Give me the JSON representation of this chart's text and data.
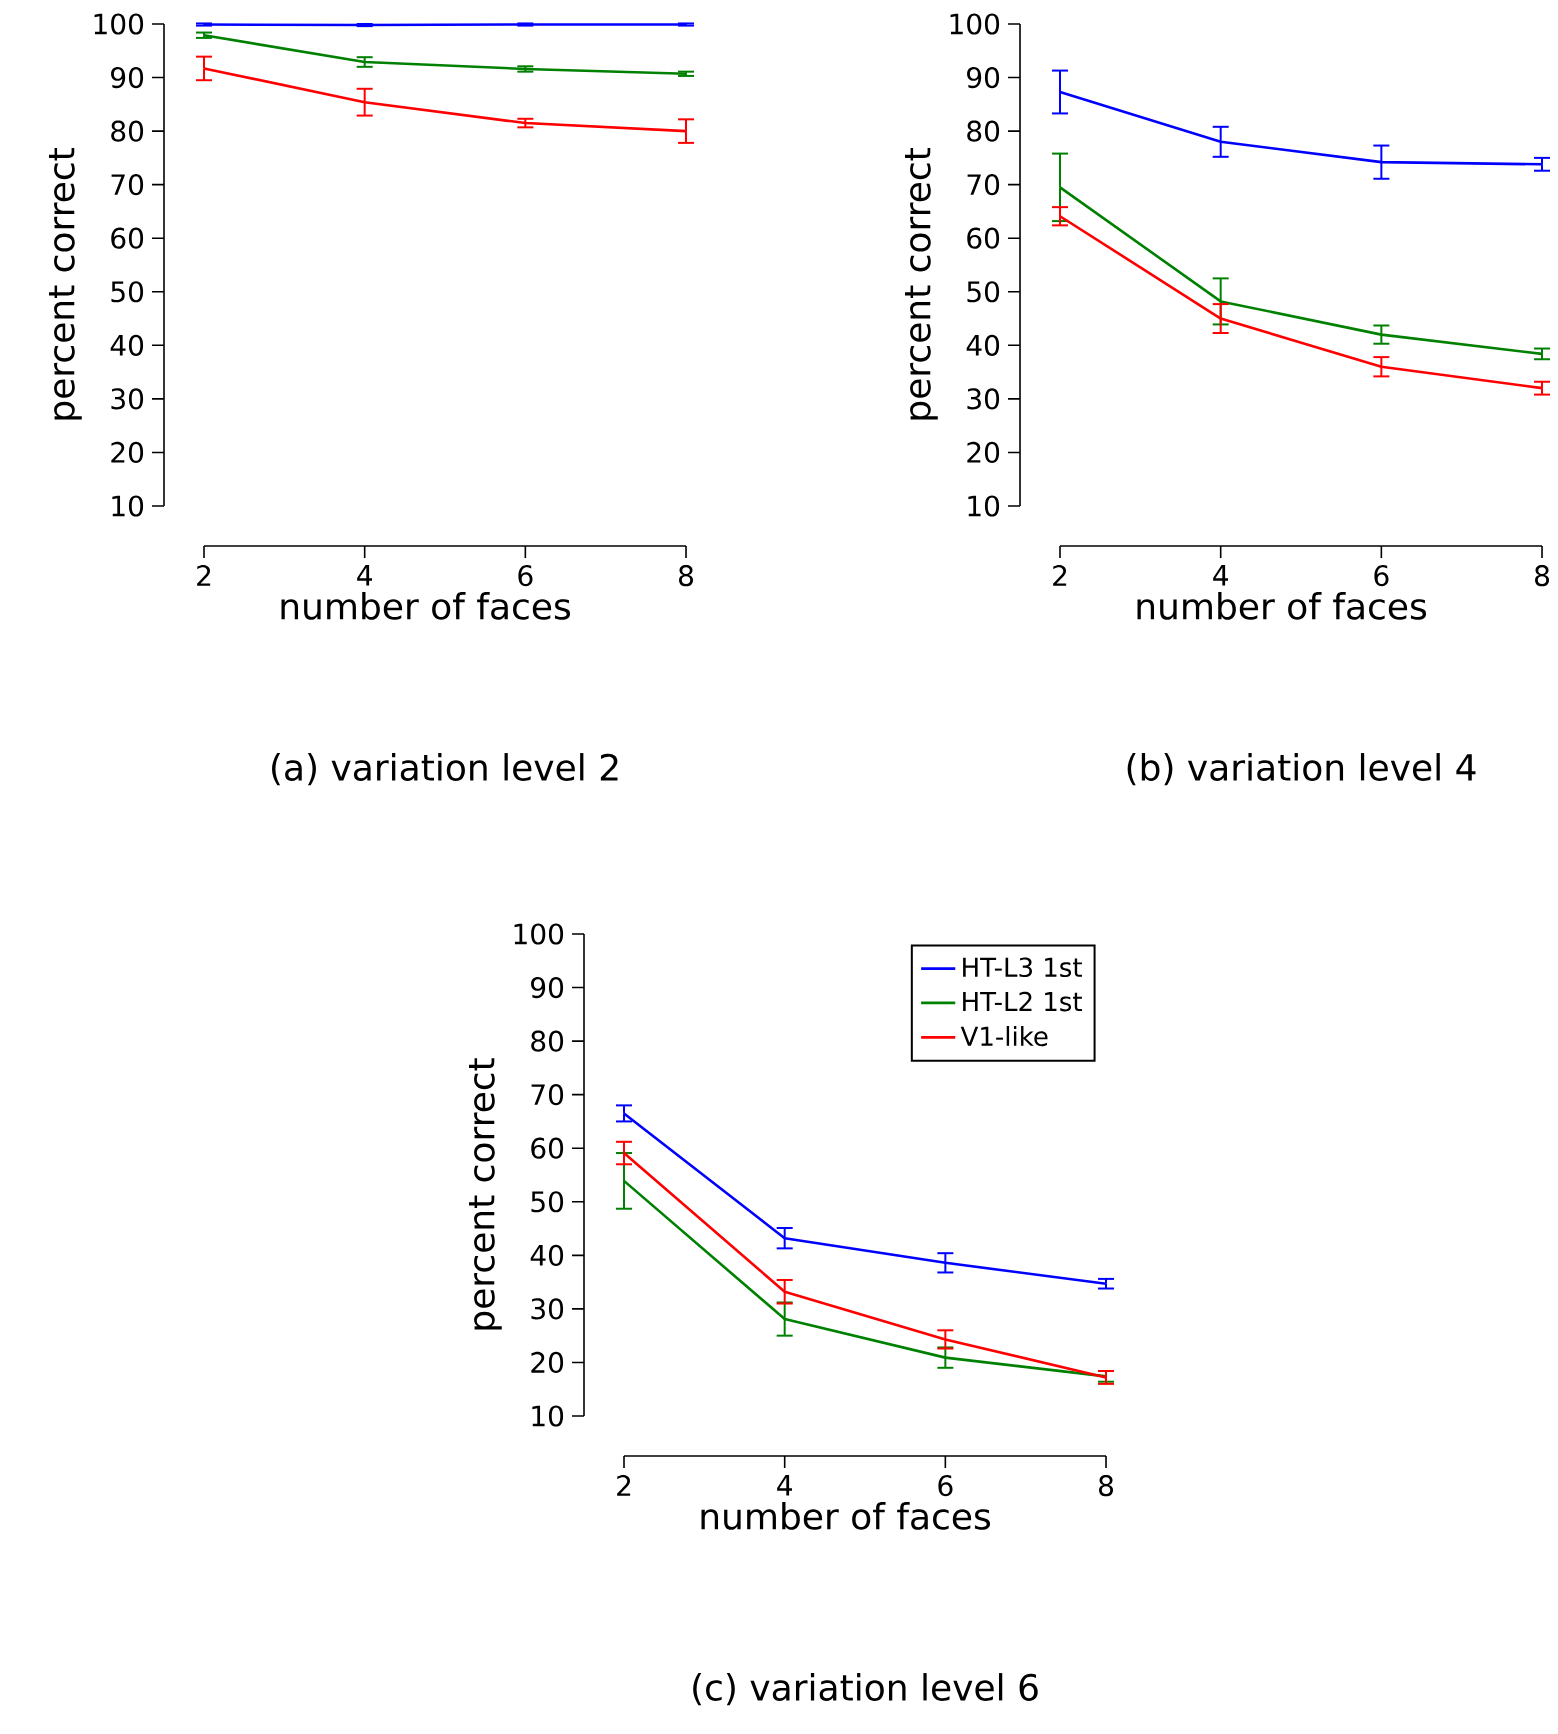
{
  "chart_data": [
    {
      "type": "line",
      "title": "(a) variation level 2",
      "xlabel": "number of faces",
      "ylabel": "percent correct",
      "x": [
        2,
        4,
        6,
        8
      ],
      "xlim": [
        2,
        8
      ],
      "xticks": [
        2,
        4,
        6,
        8
      ],
      "ylim": [
        10,
        100
      ],
      "yticks": [
        10,
        20,
        30,
        40,
        50,
        60,
        70,
        80,
        90,
        100
      ],
      "grid": false,
      "legend": false,
      "marker": "none",
      "series": [
        {
          "color": "#0000ff",
          "values": [
            99.9,
            99.8,
            99.9,
            99.9
          ],
          "errors": [
            0.2,
            0.2,
            0.2,
            0.2
          ]
        },
        {
          "color": "#008000",
          "values": [
            97.9,
            92.9,
            91.6,
            90.7
          ],
          "errors": [
            0.5,
            0.9,
            0.5,
            0.4
          ]
        },
        {
          "color": "#ff0000",
          "values": [
            91.7,
            85.4,
            81.5,
            80.0
          ],
          "errors": [
            2.2,
            2.5,
            0.8,
            2.2
          ]
        }
      ]
    },
    {
      "type": "line",
      "title": "(b) variation level 4",
      "xlabel": "number of faces",
      "ylabel": "percent correct",
      "x": [
        2,
        4,
        6,
        8
      ],
      "xlim": [
        2,
        8
      ],
      "xticks": [
        2,
        4,
        6,
        8
      ],
      "ylim": [
        10,
        100
      ],
      "yticks": [
        10,
        20,
        30,
        40,
        50,
        60,
        70,
        80,
        90,
        100
      ],
      "grid": false,
      "legend": false,
      "marker": "none",
      "series": [
        {
          "color": "#0000ff",
          "values": [
            87.3,
            78.0,
            74.2,
            73.8
          ],
          "errors": [
            4.0,
            2.8,
            3.1,
            1.2
          ]
        },
        {
          "color": "#008000",
          "values": [
            69.5,
            48.2,
            42.0,
            38.4
          ],
          "errors": [
            6.3,
            4.3,
            1.7,
            1.0
          ]
        },
        {
          "color": "#ff0000",
          "values": [
            64.1,
            45.0,
            36.0,
            32.0
          ],
          "errors": [
            1.7,
            2.7,
            1.8,
            1.2
          ]
        }
      ]
    },
    {
      "type": "line",
      "title": "(c) variation level 6",
      "xlabel": "number of faces",
      "ylabel": "percent correct",
      "x": [
        2,
        4,
        6,
        8
      ],
      "xlim": [
        2,
        8
      ],
      "xticks": [
        2,
        4,
        6,
        8
      ],
      "ylim": [
        10,
        100
      ],
      "yticks": [
        10,
        20,
        30,
        40,
        50,
        60,
        70,
        80,
        90,
        100
      ],
      "grid": false,
      "legend": "top right",
      "marker": "none",
      "series": [
        {
          "name": "HT-L3 1st",
          "color": "#0000ff",
          "values": [
            66.5,
            43.2,
            38.6,
            34.7
          ],
          "errors": [
            1.5,
            1.9,
            1.8,
            0.9
          ]
        },
        {
          "name": "HT-L2 1st",
          "color": "#008000",
          "values": [
            53.9,
            28.1,
            20.9,
            17.4
          ],
          "errors": [
            5.2,
            3.1,
            1.9,
            1.0
          ]
        },
        {
          "name": "V1-like",
          "color": "#ff0000",
          "values": [
            59.1,
            33.2,
            24.3,
            17.2
          ],
          "errors": [
            2.1,
            2.2,
            1.7,
            1.2
          ]
        }
      ]
    }
  ]
}
